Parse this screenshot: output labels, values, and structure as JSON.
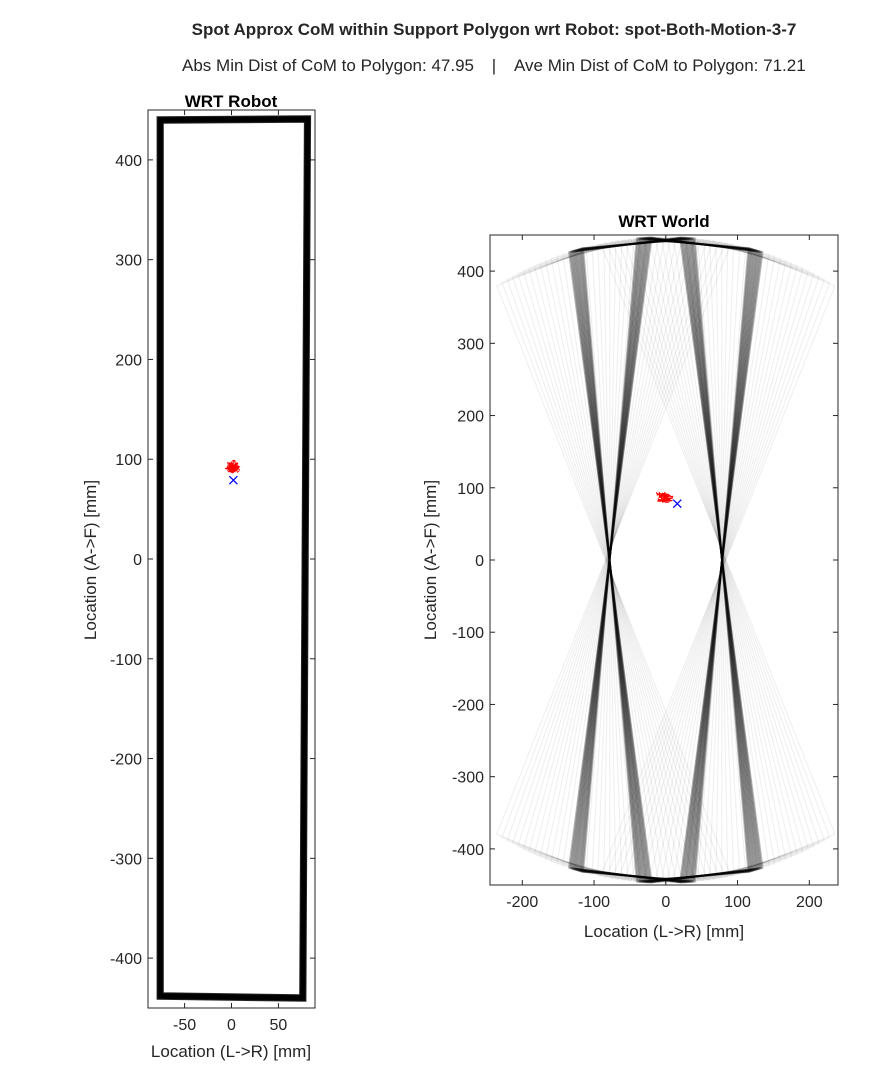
{
  "figure": {
    "title": "Spot Approx CoM within Support Polygon wrt Robot: spot-Both-Motion-3-7",
    "subtitle_left": "Abs Min Dist of CoM to Polygon: 47.95",
    "subtitle_sep": "|",
    "subtitle_right": "Ave Min Dist of CoM to Polygon: 71.21"
  },
  "chart_data": [
    {
      "type": "line",
      "title": "WRT Robot",
      "xlabel": "Location (L->R) [mm]",
      "ylabel": "Location (A->F) [mm]",
      "xlim": [
        -89,
        89
      ],
      "ylim": [
        -450,
        450
      ],
      "xticks": [
        -50,
        0,
        50
      ],
      "xtick_labels": [
        "-50",
        "0",
        "50"
      ],
      "yticks": [
        400,
        300,
        200,
        100,
        0,
        -100,
        -200,
        -300,
        -400
      ],
      "ytick_labels": [
        "400",
        "300",
        "200",
        "100",
        "0",
        "-100",
        "-200",
        "-300",
        "-400"
      ],
      "grid": false,
      "support_polygon": [
        [
          -76,
          440
        ],
        [
          81,
          441
        ],
        [
          76,
          -440
        ],
        [
          -76,
          -438
        ]
      ],
      "com_trace_color": "#ff0000",
      "com_marker": {
        "x": 2,
        "y": 79,
        "color": "#0000ff"
      }
    },
    {
      "type": "line",
      "title": "WRT World",
      "xlabel": "Location (L->R) [mm]",
      "ylabel": "Location (A->F) [mm]",
      "xlim": [
        -245,
        240
      ],
      "ylim": [
        -450,
        450
      ],
      "xticks": [
        -200,
        -100,
        0,
        100,
        200
      ],
      "xtick_labels": [
        "-200",
        "-100",
        "0",
        "100",
        "200"
      ],
      "yticks": [
        400,
        300,
        200,
        100,
        0,
        -100,
        -200,
        -300,
        -400
      ],
      "ytick_labels": [
        "400",
        "300",
        "200",
        "100",
        "0",
        "-100",
        "-200",
        "-300",
        "-400"
      ],
      "grid": false,
      "polygon_color": "#000000",
      "com_trace_color": "#ff0000",
      "com_marker": {
        "x": 16,
        "y": 78,
        "color": "#0000ff"
      }
    }
  ]
}
